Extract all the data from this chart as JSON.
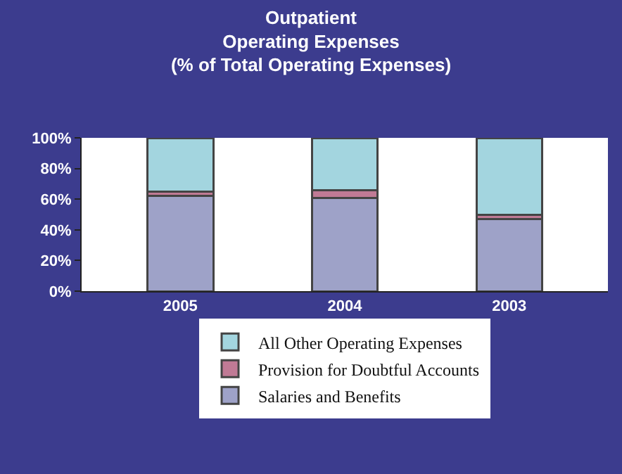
{
  "chart_data": {
    "type": "bar",
    "title": "Outpatient\nOperating Expenses\n(% of Total Operating Expenses)",
    "categories": [
      "2005",
      "2004",
      "2003"
    ],
    "stacked": true,
    "series": [
      {
        "name": "Salaries and Benefits",
        "color": "#9ea2c8",
        "values": [
          62,
          61,
          47
        ]
      },
      {
        "name": "Provision for Doubtful Accounts",
        "color": "#c07a95",
        "values": [
          3,
          5,
          3
        ]
      },
      {
        "name": "All Other Operating Expenses",
        "color": "#a3d5df",
        "values": [
          35,
          34,
          50
        ]
      }
    ],
    "ylim": [
      0,
      100
    ],
    "yticks": [
      {
        "value": 0,
        "label": "0%"
      },
      {
        "value": 20,
        "label": "20%"
      },
      {
        "value": 40,
        "label": "40%"
      },
      {
        "value": 60,
        "label": "60%"
      },
      {
        "value": 80,
        "label": "80%"
      },
      {
        "value": 100,
        "label": "100%"
      }
    ],
    "grid": false,
    "legend": "bottom"
  }
}
